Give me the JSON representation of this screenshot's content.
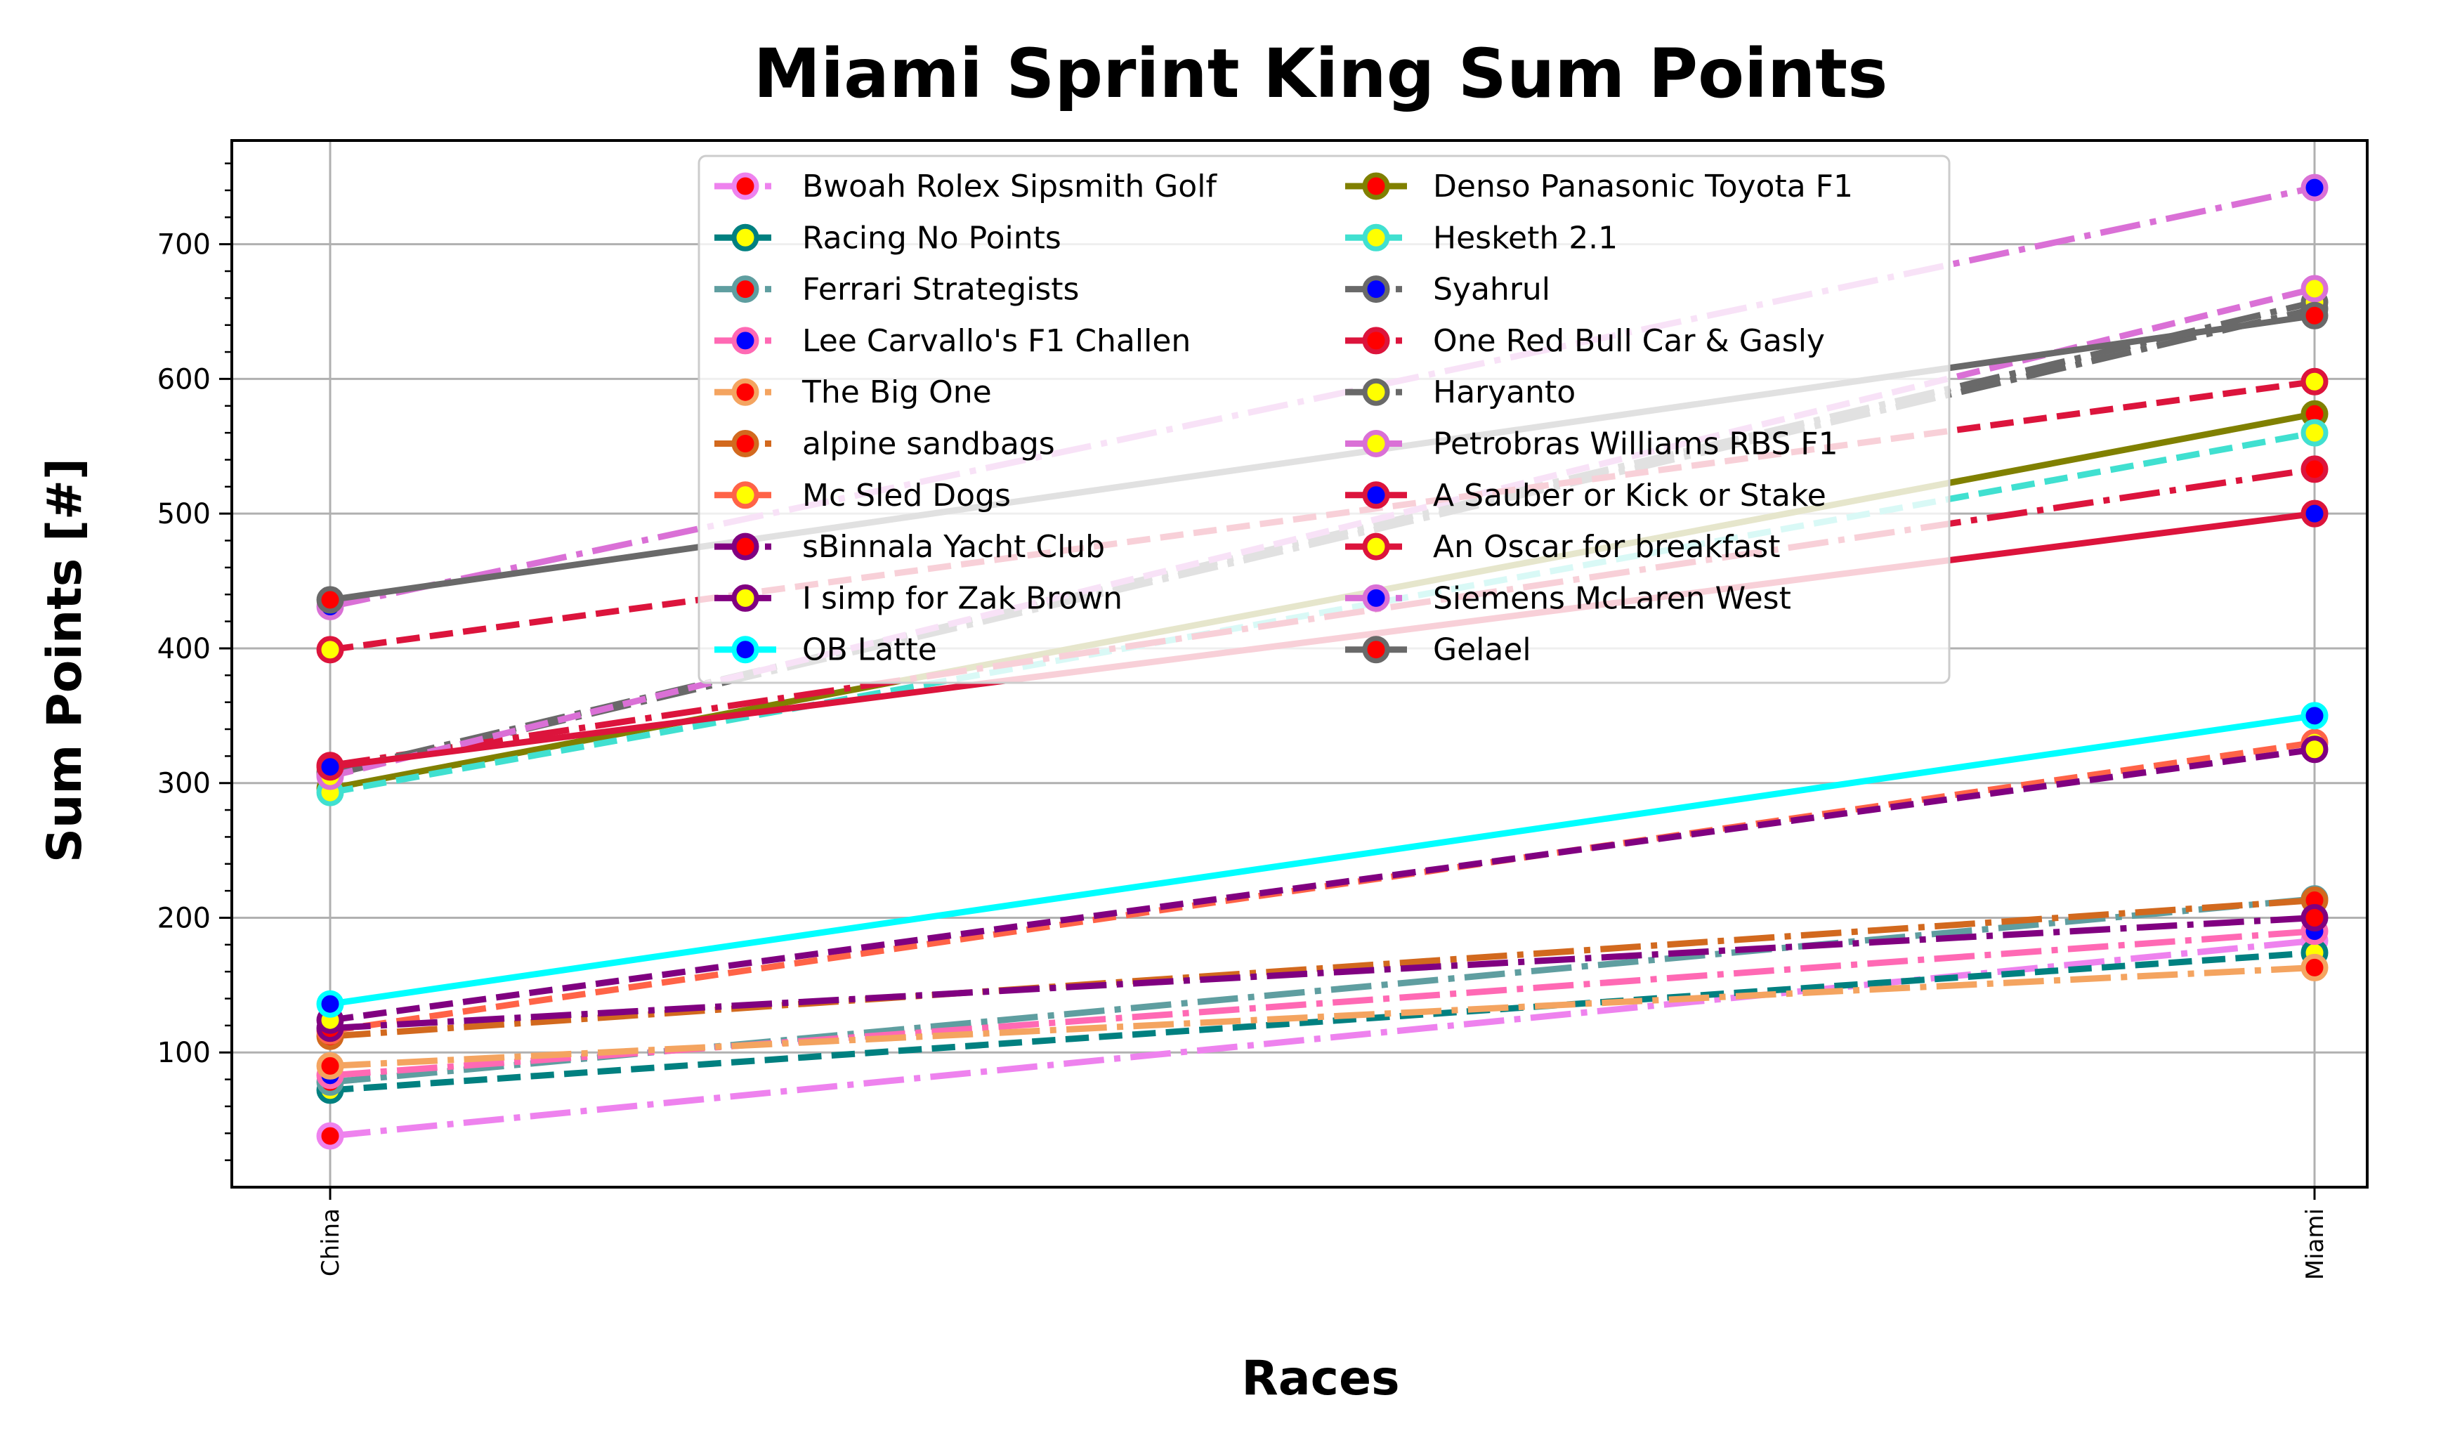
{
  "chart_data": {
    "type": "line",
    "title": "Miami Sprint King Sum Points",
    "xlabel": "Races",
    "ylabel": "Sum Points [#]",
    "categories": [
      "China",
      "Miami"
    ],
    "ylim": [
      0,
      777
    ],
    "yticks": [
      100,
      200,
      300,
      400,
      500,
      600,
      700
    ],
    "grid": true,
    "legend_position": "top-center",
    "series": [
      {
        "name": "Bwoah Rolex Sipsmith Golf",
        "values": [
          38,
          183
        ],
        "color": "#ee82ee",
        "dash": "dashdot",
        "marker_edge": "#ee82ee",
        "marker_face": "#ff0000"
      },
      {
        "name": "Racing No Points",
        "values": [
          72,
          174
        ],
        "color": "#008080",
        "dash": "dashed",
        "marker_edge": "#008080",
        "marker_face": "#ffff00"
      },
      {
        "name": "Ferrari Strategists",
        "values": [
          78,
          214
        ],
        "color": "#5f9ea0",
        "dash": "dashdot",
        "marker_edge": "#5f9ea0",
        "marker_face": "#ff0000"
      },
      {
        "name": "Lee Carvallo's F1 Challen",
        "values": [
          83,
          190
        ],
        "color": "#ff69b4",
        "dash": "dashdot",
        "marker_edge": "#ff69b4",
        "marker_face": "#0000ff"
      },
      {
        "name": "The Big One",
        "values": [
          90,
          163
        ],
        "color": "#f4a460",
        "dash": "dashdot",
        "marker_edge": "#f4a460",
        "marker_face": "#ff0000"
      },
      {
        "name": "alpine sandbags",
        "values": [
          112,
          213
        ],
        "color": "#d2691e",
        "dash": "dashdot",
        "marker_edge": "#d2691e",
        "marker_face": "#ff0000"
      },
      {
        "name": "Mc Sled Dogs",
        "values": [
          116,
          330
        ],
        "color": "#ff6347",
        "dash": "dashed",
        "marker_edge": "#ff6347",
        "marker_face": "#ffff00"
      },
      {
        "name": "sBinnala Yacht Club",
        "values": [
          118,
          200
        ],
        "color": "#800080",
        "dash": "dashdot",
        "marker_edge": "#800080",
        "marker_face": "#ff0000"
      },
      {
        "name": "I simp for Zak Brown",
        "values": [
          124,
          325
        ],
        "color": "#800080",
        "dash": "dashed",
        "marker_edge": "#800080",
        "marker_face": "#ffff00"
      },
      {
        "name": "OB Latte",
        "values": [
          136,
          350
        ],
        "color": "#00ffff",
        "dash": "solid",
        "marker_edge": "#00ffff",
        "marker_face": "#0000ff"
      },
      {
        "name": "Denso Panasonic Toyota F1",
        "values": [
          296,
          574
        ],
        "color": "#808000",
        "dash": "solid",
        "marker_edge": "#808000",
        "marker_face": "#ff0000"
      },
      {
        "name": "Hesketh 2.1",
        "values": [
          293,
          560
        ],
        "color": "#40e0d0",
        "dash": "dashed",
        "marker_edge": "#40e0d0",
        "marker_face": "#ffff00"
      },
      {
        "name": "Syahrul",
        "values": [
          306,
          652
        ],
        "color": "#696969",
        "dash": "dashdot",
        "marker_edge": "#696969",
        "marker_face": "#0000ff"
      },
      {
        "name": "One Red Bull Car & Gasly",
        "values": [
          313,
          533
        ],
        "color": "#dc143c",
        "dash": "dashdot",
        "marker_edge": "#dc143c",
        "marker_face": "#ff0000"
      },
      {
        "name": "Haryanto",
        "values": [
          308,
          657
        ],
        "color": "#696969",
        "dash": "dashdot",
        "marker_edge": "#696969",
        "marker_face": "#ffff00"
      },
      {
        "name": "Petrobras Williams RBS F1",
        "values": [
          305,
          667
        ],
        "color": "#da70d6",
        "dash": "dashed",
        "marker_edge": "#da70d6",
        "marker_face": "#ffff00"
      },
      {
        "name": "A Sauber or Kick or Stake",
        "values": [
          312,
          500
        ],
        "color": "#dc143c",
        "dash": "solid",
        "marker_edge": "#dc143c",
        "marker_face": "#0000ff"
      },
      {
        "name": "An Oscar for breakfast",
        "values": [
          399,
          598
        ],
        "color": "#dc143c",
        "dash": "dashed",
        "marker_edge": "#dc143c",
        "marker_face": "#ffff00"
      },
      {
        "name": "Siemens McLaren West",
        "values": [
          431,
          742
        ],
        "color": "#da70d6",
        "dash": "dashdot",
        "marker_edge": "#da70d6",
        "marker_face": "#0000ff"
      },
      {
        "name": "Gelael",
        "values": [
          436,
          647
        ],
        "color": "#696969",
        "dash": "solid",
        "marker_edge": "#696969",
        "marker_face": "#ff0000"
      }
    ]
  }
}
